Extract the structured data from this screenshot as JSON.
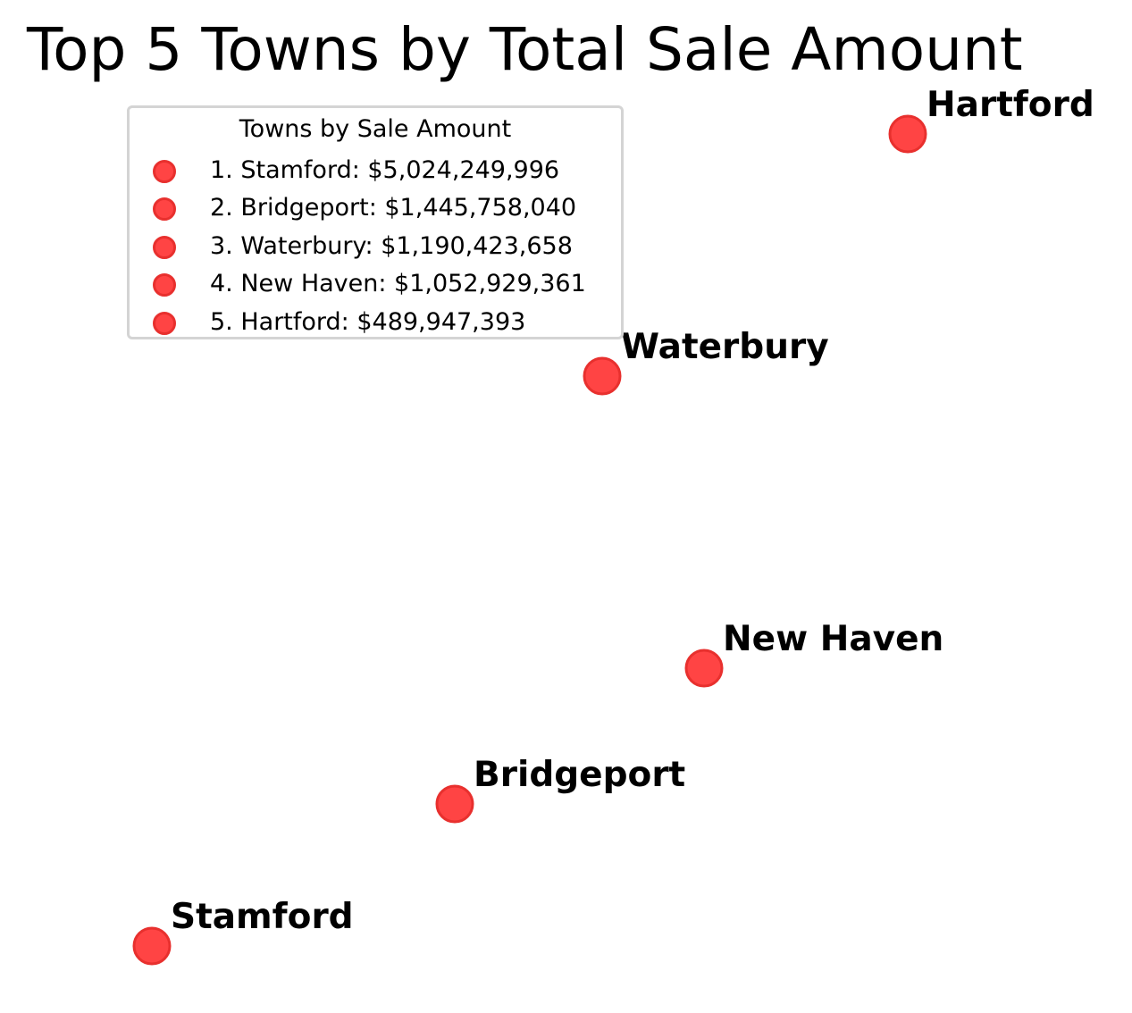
{
  "chart_data": {
    "type": "scatter",
    "title": "Top 5 Towns by Total Sale Amount",
    "xlabel": "",
    "ylabel": "",
    "grid": false,
    "axes_visible": false,
    "marker_fill": "#ff4444",
    "marker_edge": "#e8302e",
    "legend": {
      "title": "Towns by Sale Amount",
      "placement": "top-left",
      "entries": [
        "1. Stamford: $5,024,249,996",
        "2. Bridgeport: $1,445,758,040",
        "3. Waterbury: $1,190,423,658",
        "4. New Haven: $1,052,929,361",
        "5. Hartford: $489,947,393"
      ]
    },
    "points": [
      {
        "label": "Stamford",
        "rank": 1,
        "sale_amount": 5024249996
      },
      {
        "label": "Bridgeport",
        "rank": 2,
        "sale_amount": 1445758040
      },
      {
        "label": "Waterbury",
        "rank": 3,
        "sale_amount": 1190423658
      },
      {
        "label": "New Haven",
        "rank": 4,
        "sale_amount": 1052929361
      },
      {
        "label": "Hartford",
        "rank": 5,
        "sale_amount": 489947393
      }
    ]
  }
}
